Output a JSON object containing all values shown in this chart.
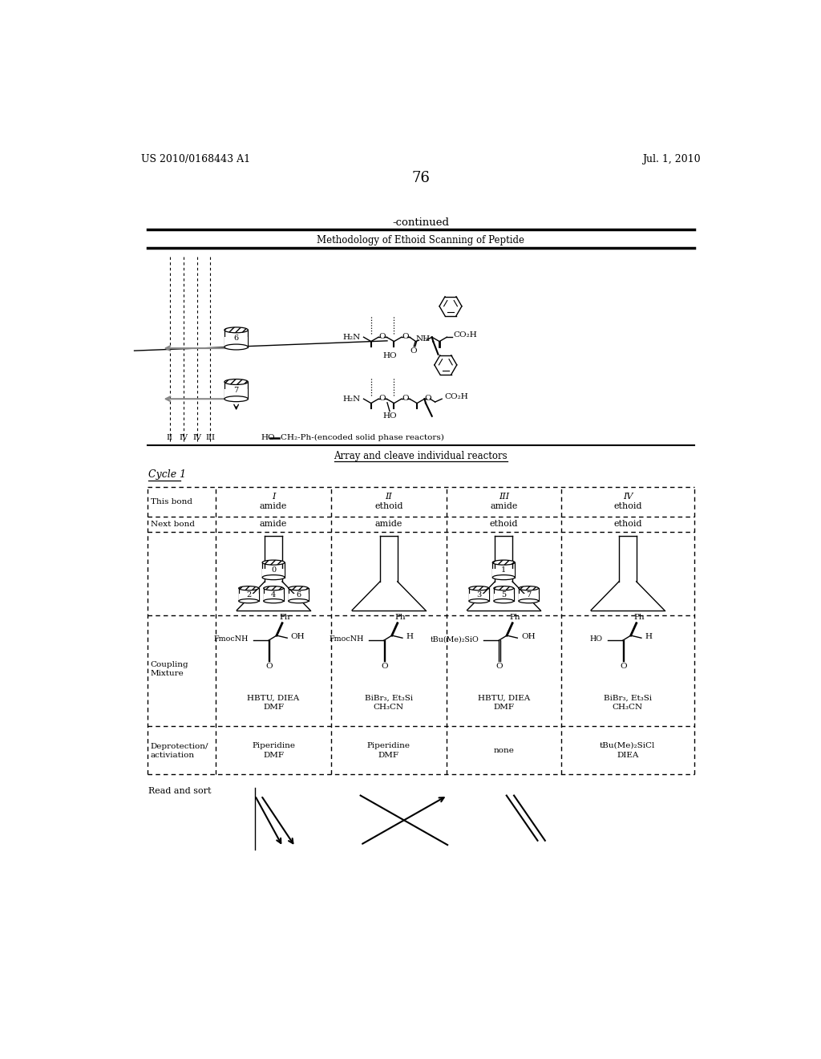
{
  "bg_color": "#ffffff",
  "header_left": "US 2010/0168443 A1",
  "header_right": "Jul. 1, 2010",
  "page_number": "76",
  "continued_text": "-continued",
  "section1_title": "Methodology of Ethoid Scanning of Peptide",
  "section2_title": "Array and cleave individual reactors",
  "cycle_label": "Cycle 1",
  "solid_phase_label": "HO — CH₂-Ph-(encoded solid phase reactors)",
  "left_labels": [
    "II",
    "IV",
    "IV",
    "III"
  ],
  "column_headers_roman": [
    "I",
    "II",
    "III",
    "IV"
  ],
  "column_headers_bond": [
    "amide",
    "ethoid",
    "amide",
    "ethoid"
  ],
  "next_bond_values": [
    "amide",
    "amide",
    "ethoid",
    "ethoid"
  ],
  "col1_beads": [
    "0",
    "2",
    "4",
    "6"
  ],
  "col3_beads": [
    "1",
    "3",
    "5",
    "7"
  ],
  "col1_reagents": [
    "HBTU, DIEA",
    "DMF"
  ],
  "col2_reagents": [
    "BiBr₃, Et₃Si",
    "CH₃CN"
  ],
  "col3_reagents": [
    "HBTU, DIEA",
    "DMF"
  ],
  "col4_reagents": [
    "BiBr₃, Et₃Si",
    "CH₃CN"
  ],
  "col1_left_group": "FmocNH",
  "col2_left_group": "FmocNH",
  "col3_left_group": "tBu(Me)₂SiO",
  "col4_left_group": "HO",
  "col1_right_group": "OH",
  "col2_right_group": "H",
  "col3_right_group": "OH",
  "col4_right_group": "H",
  "col1_deprotect": [
    "Piperidine",
    "DMF"
  ],
  "col2_deprotect": [
    "Piperidine",
    "DMF"
  ],
  "col3_deprotect": [
    "none"
  ],
  "col4_deprotect": [
    "tBu(Me)₂SiCl",
    "DIEA"
  ],
  "read_sort_label": "Read and sort"
}
